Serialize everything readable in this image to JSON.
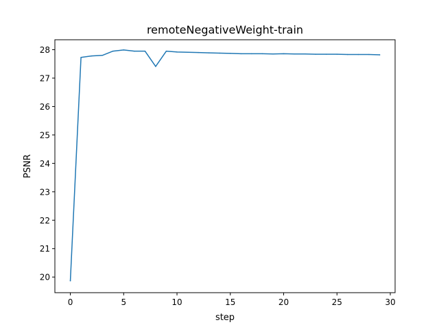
{
  "chart_data": {
    "type": "line",
    "title": "remoteNegativeWeight-train",
    "xlabel": "step",
    "ylabel": "PSNR",
    "xlim": [
      -1.45,
      30.45
    ],
    "ylim": [
      19.45,
      28.35
    ],
    "xticks": [
      0,
      5,
      10,
      15,
      20,
      25,
      30
    ],
    "yticks": [
      20,
      21,
      22,
      23,
      24,
      25,
      26,
      27,
      28
    ],
    "grid": false,
    "line_color": "#1f77b4",
    "series": [
      {
        "x": [
          0,
          1,
          2,
          3,
          4,
          5,
          6,
          7,
          8,
          9,
          10,
          11,
          12,
          13,
          14,
          15,
          16,
          17,
          18,
          19,
          20,
          21,
          22,
          23,
          24,
          25,
          26,
          27,
          28,
          29
        ],
        "y": [
          19.87,
          27.73,
          27.78,
          27.8,
          27.95,
          27.99,
          27.95,
          27.95,
          27.41,
          27.95,
          27.92,
          27.91,
          27.9,
          27.89,
          27.88,
          27.87,
          27.86,
          27.86,
          27.86,
          27.85,
          27.86,
          27.85,
          27.85,
          27.84,
          27.84,
          27.84,
          27.83,
          27.83,
          27.83,
          27.82
        ]
      }
    ]
  }
}
